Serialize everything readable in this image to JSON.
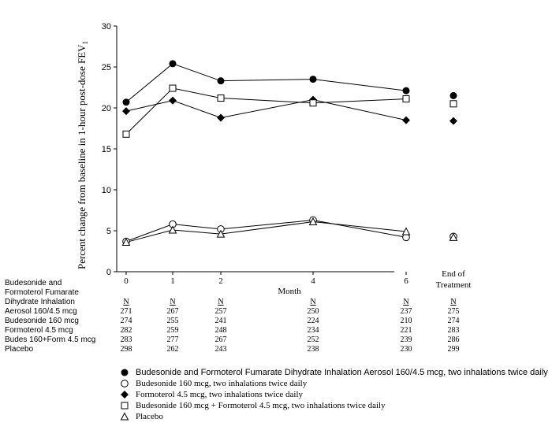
{
  "chart_data": {
    "type": "line",
    "ylabel": "Percent change from baseline in 1-hour post-dose FEV",
    "ylabel_sub": "1",
    "xlabel": "Month",
    "ylim": [
      0,
      30
    ],
    "yticks": [
      "0",
      "5",
      "10",
      "15",
      "20",
      "25",
      "30"
    ],
    "x": [
      0,
      1,
      2,
      4,
      6
    ],
    "xtick_labels": [
      "0",
      "1",
      "2",
      "4",
      "6"
    ],
    "end_label_line1": "End of",
    "end_label_line2": "Treatment",
    "series": [
      {
        "name": "Budesonide and Formoterol Fumarate Dihydrate Inhalation Aerosol 160/4.5 mcg, two inhalations twice daily",
        "marker": "filled-circle",
        "values": [
          20.7,
          25.4,
          23.3,
          23.5,
          22.1
        ],
        "end_of_treatment": 21.5
      },
      {
        "name": "Budesonide 160 mcg, two inhalations twice daily",
        "marker": "open-circle",
        "values": [
          3.7,
          5.8,
          5.2,
          6.3,
          4.2
        ],
        "end_of_treatment": 4.3
      },
      {
        "name": "Formoterol 4.5 mcg, two inhalations twice daily",
        "marker": "filled-diamond",
        "values": [
          19.6,
          20.9,
          18.8,
          21.0,
          18.5
        ],
        "end_of_treatment": 18.4
      },
      {
        "name": "Budesonide 160 mcg + Formoterol 4.5 mcg, two inhalations twice daily",
        "marker": "open-square",
        "values": [
          16.8,
          22.4,
          21.2,
          20.6,
          21.1
        ],
        "end_of_treatment": 20.5
      },
      {
        "name": "Placebo",
        "marker": "open-triangle",
        "values": [
          3.6,
          5.1,
          4.6,
          6.1,
          4.9
        ],
        "end_of_treatment": 4.2
      }
    ]
  },
  "table": {
    "header_lines": [
      "Budesonide and",
      "Formoterol Fumarate",
      "Dihydrate Inhalation"
    ],
    "n_label": "N",
    "rows": [
      {
        "label": "Aerosol 160/4.5 mcg",
        "values": [
          "271",
          "267",
          "257",
          "250",
          "237",
          "275"
        ]
      },
      {
        "label": "Budesonide 160 mcg",
        "values": [
          "274",
          "255",
          "241",
          "224",
          "210",
          "274"
        ]
      },
      {
        "label": "Formoterol 4.5 mcg",
        "values": [
          "282",
          "259",
          "248",
          "234",
          "221",
          "283"
        ]
      },
      {
        "label": "Budes 160+Form 4.5 mcg",
        "values": [
          "283",
          "277",
          "267",
          "252",
          "239",
          "286"
        ]
      },
      {
        "label": "Placebo",
        "values": [
          "298",
          "262",
          "243",
          "238",
          "230",
          "299"
        ]
      }
    ]
  }
}
